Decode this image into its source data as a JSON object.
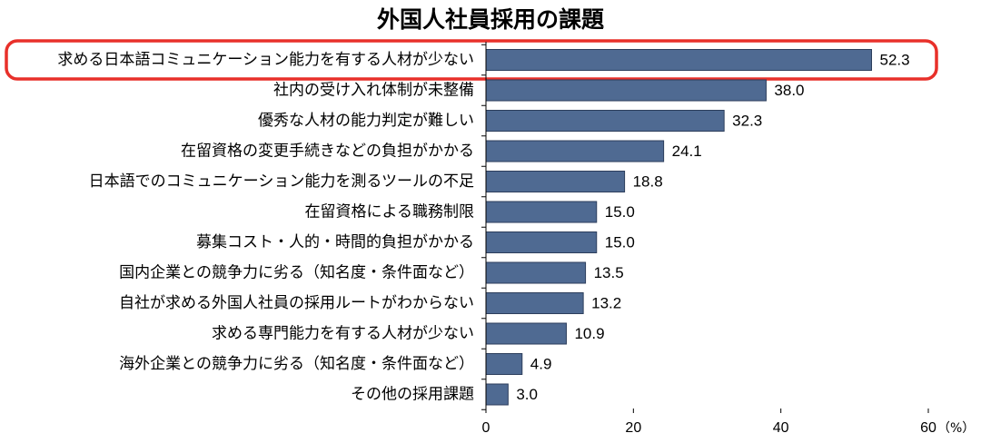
{
  "chart_data": {
    "type": "bar",
    "orientation": "horizontal",
    "title": "外国人社員採用の課題",
    "categories": [
      "求める日本語コミュニケーション能力を有する人材が少ない",
      "社内の受け入れ体制が未整備",
      "優秀な人材の能力判定が難しい",
      "在留資格の変更手続きなどの負担がかかる",
      "日本語でのコミュニケーション能力を測るツールの不足",
      "在留資格による職務制限",
      "募集コスト・人的・時間的負担がかかる",
      "国内企業との競争力に劣る（知名度・条件面など）",
      "自社が求める外国人社員の採用ルートがわからない",
      "求める専門能力を有する人材が少ない",
      "海外企業との競争力に劣る（知名度・条件面など）",
      "その他の採用課題"
    ],
    "values": [
      52.3,
      38.0,
      32.3,
      24.1,
      18.8,
      15.0,
      15.0,
      13.5,
      13.2,
      10.9,
      4.9,
      3.0
    ],
    "value_labels": [
      "52.3",
      "38.0",
      "32.3",
      "24.1",
      "18.8",
      "15.0",
      "15.0",
      "13.5",
      "13.2",
      "10.9",
      "4.9",
      "3.0"
    ],
    "xlim": [
      0,
      60
    ],
    "xticks": [
      "0",
      "20",
      "40",
      "60"
    ],
    "xunit": "（%）",
    "highlighted_category_index": 0,
    "grid": false,
    "legend": "none",
    "colors": {
      "bar": "#4F6A92",
      "bar_edge": "#2C3E5C",
      "highlight": "#E8302A",
      "axis": "#000000"
    }
  }
}
